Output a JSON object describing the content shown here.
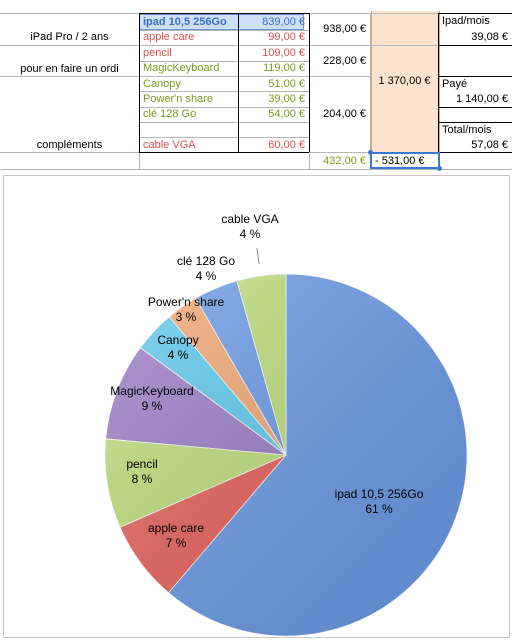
{
  "sheet": {
    "row_labels": {
      "ipad_pro": "iPad Pro / 2 ans",
      "ordi": "pour en faire un ordi",
      "complements": "compléments"
    },
    "items": [
      {
        "name": "ipad 10,5 256Go",
        "price": "839,00 €",
        "color": "#3b6fc4"
      },
      {
        "name": "apple care",
        "price": "99,00 €",
        "color": "#d9534f"
      },
      {
        "name": "pencil",
        "price": "109,00 €",
        "color": "#d9534f"
      },
      {
        "name": "MagicKeyboard",
        "price": "119,00 €",
        "color": "#7a9a1f"
      },
      {
        "name": "Canopy",
        "price": "51,00 €",
        "color": "#7a9a1f"
      },
      {
        "name": "Power'n share",
        "price": "39,00 €",
        "color": "#7a9a1f"
      },
      {
        "name": "clé 128 Go",
        "price": "54,00 €",
        "color": "#7a9a1f"
      },
      {
        "name": "",
        "price": "",
        "color": "#000000"
      },
      {
        "name": "",
        "price": "",
        "color": "#000000"
      },
      {
        "name": "cable VGA",
        "price": "60,00 €",
        "color": "#d9534f"
      }
    ],
    "subtotals": {
      "ipad_pro": "938,00 €",
      "ordi": "228,00 €",
      "complements": "204,00 €",
      "comp_total": "432,00 €"
    },
    "grand_total": "1 370,00 €",
    "difference": "-  531,00 €",
    "right_panel": {
      "ipad_mois_label": "Ipad/mois",
      "ipad_mois_value": "39,08 €",
      "paye_label": "Payé",
      "paye_value": "1 140,00 €",
      "total_mois_label": "Total/mois",
      "total_mois_value": "57,08 €"
    }
  },
  "chart_data": {
    "type": "pie",
    "title": "",
    "slices": [
      {
        "label": "ipad 10,5 256Go",
        "value": 839,
        "percent_label": "61 %",
        "color": "#6a9be8"
      },
      {
        "label": "apple care",
        "value": 99,
        "percent_label": "7 %",
        "color": "#e8605a"
      },
      {
        "label": "pencil",
        "value": 109,
        "percent_label": "8 %",
        "color": "#bde07a"
      },
      {
        "label": "MagicKeyboard",
        "value": 119,
        "percent_label": "9 %",
        "color": "#9a7cc8"
      },
      {
        "label": "Canopy",
        "value": 51,
        "percent_label": "4 %",
        "color": "#5ccbee"
      },
      {
        "label": "Power'n share",
        "value": 39,
        "percent_label": "3 %",
        "color": "#f4a874"
      },
      {
        "label": "clé 128 Go",
        "value": 54,
        "percent_label": "4 %",
        "color": "#6a9be8"
      },
      {
        "label": "cable VGA",
        "value": 60,
        "percent_label": "4 %",
        "color": "#bde07a"
      }
    ]
  }
}
